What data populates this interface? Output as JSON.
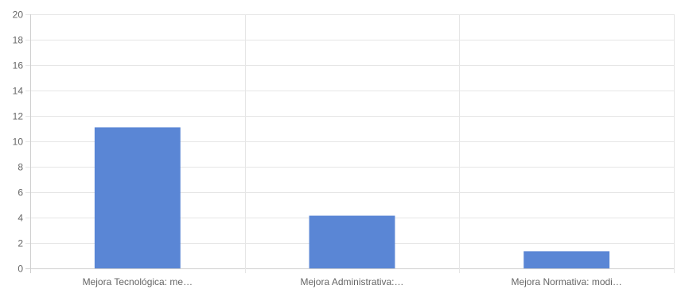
{
  "chart_data": {
    "type": "bar",
    "categories": [
      "Mejora Tecnológica: me…",
      "Mejora Administrativa:…",
      "Mejora Normativa: modi…"
    ],
    "values": [
      11.1,
      4.15,
      1.35
    ],
    "ylim": [
      0,
      20
    ],
    "yticks": [
      0,
      2,
      4,
      6,
      8,
      10,
      12,
      14,
      16,
      18,
      20
    ],
    "grid": true,
    "legend": "none",
    "colors": {
      "bar": "#5a86d5",
      "grid": "#e6e6e6",
      "axis": "#cfcfcf",
      "text": "#666666"
    }
  }
}
